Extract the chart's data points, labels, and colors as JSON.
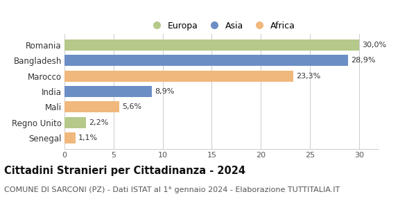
{
  "categories": [
    "Senegal",
    "Regno Unito",
    "Mali",
    "India",
    "Marocco",
    "Bangladesh",
    "Romania"
  ],
  "values": [
    1.1,
    2.2,
    5.6,
    8.9,
    23.3,
    28.9,
    30.0
  ],
  "labels": [
    "1,1%",
    "2,2%",
    "5,6%",
    "8,9%",
    "23,3%",
    "28,9%",
    "30,0%"
  ],
  "colors": [
    "#f0b87c",
    "#b5c98a",
    "#f0b87c",
    "#6b8ec4",
    "#f0b87c",
    "#6b8ec4",
    "#b5c98a"
  ],
  "legend_items": [
    {
      "label": "Europa",
      "color": "#b5c98a"
    },
    {
      "label": "Asia",
      "color": "#6b8ec4"
    },
    {
      "label": "Africa",
      "color": "#f0b87c"
    }
  ],
  "xlim": [
    0,
    32
  ],
  "xticks": [
    0,
    5,
    10,
    15,
    20,
    25,
    30
  ],
  "title": "Cittadini Stranieri per Cittadinanza - 2024",
  "subtitle": "COMUNE DI SARCONI (PZ) - Dati ISTAT al 1° gennaio 2024 - Elaborazione TUTTITALIA.IT",
  "title_fontsize": 10.5,
  "subtitle_fontsize": 8,
  "bar_height": 0.72,
  "background_color": "#ffffff",
  "grid_color": "#cccccc",
  "label_fontsize": 8,
  "tick_fontsize": 8,
  "ylabel_fontsize": 8.5
}
